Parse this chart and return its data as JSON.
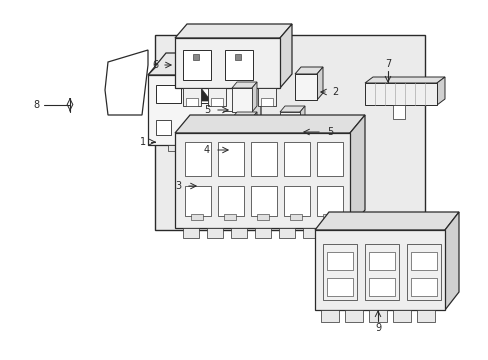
{
  "background_color": "#ffffff",
  "line_color": "#2a2a2a",
  "dot_fill": "#d8d8d8",
  "fig_width": 4.89,
  "fig_height": 3.6,
  "dpi": 100
}
